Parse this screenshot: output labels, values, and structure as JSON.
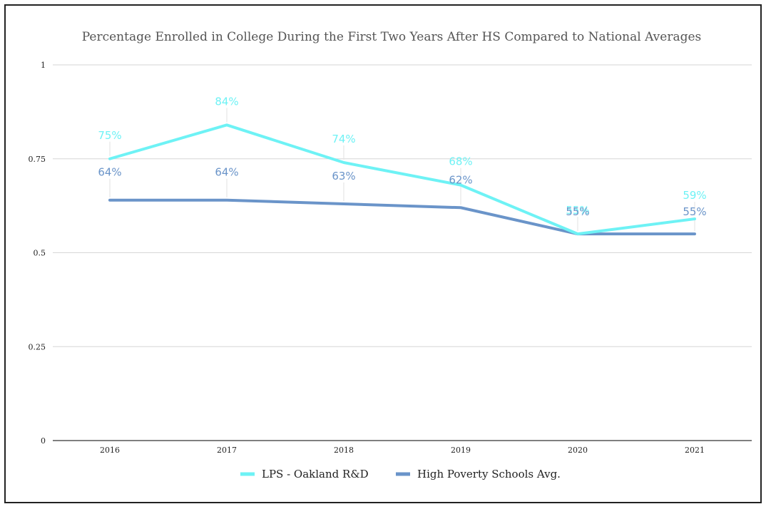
{
  "chart_data": {
    "type": "line",
    "title": "Percentage Enrolled in College During the First Two Years After HS Compared to National Averages",
    "xlabel": "",
    "ylabel": "",
    "categories": [
      "2016",
      "2017",
      "2018",
      "2019",
      "2020",
      "2021"
    ],
    "ylim": [
      0,
      1
    ],
    "yticks": [
      {
        "value": 0,
        "label": "0"
      },
      {
        "value": 0.25,
        "label": "0.25"
      },
      {
        "value": 0.5,
        "label": "0.5"
      },
      {
        "value": 0.75,
        "label": "0.75"
      },
      {
        "value": 1,
        "label": "1"
      }
    ],
    "grid": true,
    "legend": "bottom",
    "series": [
      {
        "name": "LPS - Oakland R&D",
        "color": "#6ef2f5",
        "values": [
          0.75,
          0.84,
          0.74,
          0.68,
          0.55,
          0.59
        ],
        "labels": [
          "75%",
          "84%",
          "74%",
          "68%",
          "55%",
          "59%"
        ]
      },
      {
        "name": "High Poverty Schools Avg.",
        "color": "#6a94c9",
        "values": [
          0.64,
          0.64,
          0.63,
          0.62,
          0.55,
          0.55
        ],
        "labels": [
          "64%",
          "64%",
          "63%",
          "62%",
          "55%",
          "55%"
        ]
      }
    ]
  }
}
